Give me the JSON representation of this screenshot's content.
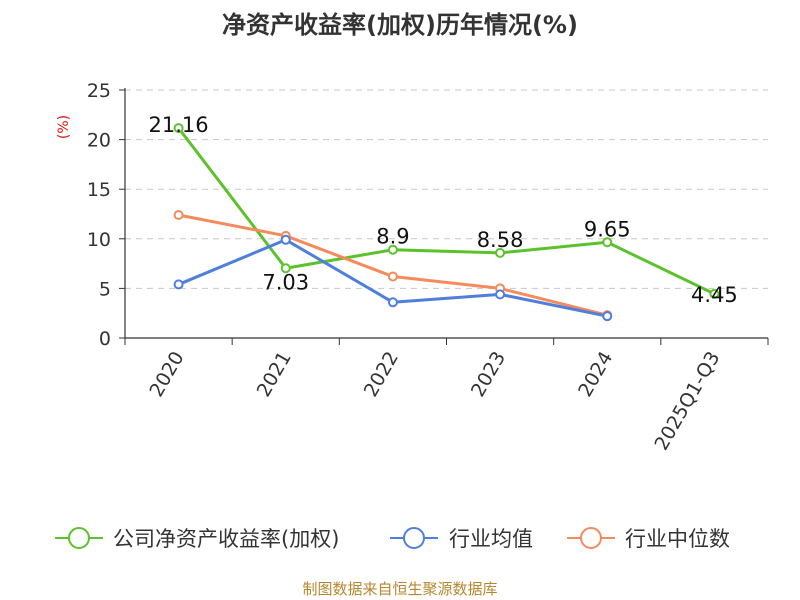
{
  "chart_data": {
    "type": "line",
    "title": "净资产收益率(加权)历年情况(%)",
    "ylabel": "(%)",
    "xlabel": "",
    "categories": [
      "2020",
      "2021",
      "2022",
      "2023",
      "2024",
      "2025Q1-Q3"
    ],
    "ylim": [
      0,
      25
    ],
    "yticks": [
      0,
      5,
      10,
      15,
      20,
      25
    ],
    "grid": true,
    "legend_position": "bottom",
    "series": [
      {
        "name": "公司净资产收益率(加权)",
        "color": "#5cc22c",
        "values": [
          21.16,
          7.03,
          8.9,
          8.58,
          9.65,
          4.45
        ],
        "labels": [
          "21.16",
          "7.03",
          "8.9",
          "8.58",
          "9.65",
          "4.45"
        ]
      },
      {
        "name": "行业均值",
        "color": "#4f7fdc",
        "values": [
          5.4,
          9.9,
          3.6,
          4.4,
          2.2,
          null
        ]
      },
      {
        "name": "行业中位数",
        "color": "#f58a5c",
        "values": [
          12.4,
          10.3,
          6.2,
          5.0,
          2.3,
          null
        ]
      }
    ],
    "source": "制图数据来自恒生聚源数据库"
  }
}
